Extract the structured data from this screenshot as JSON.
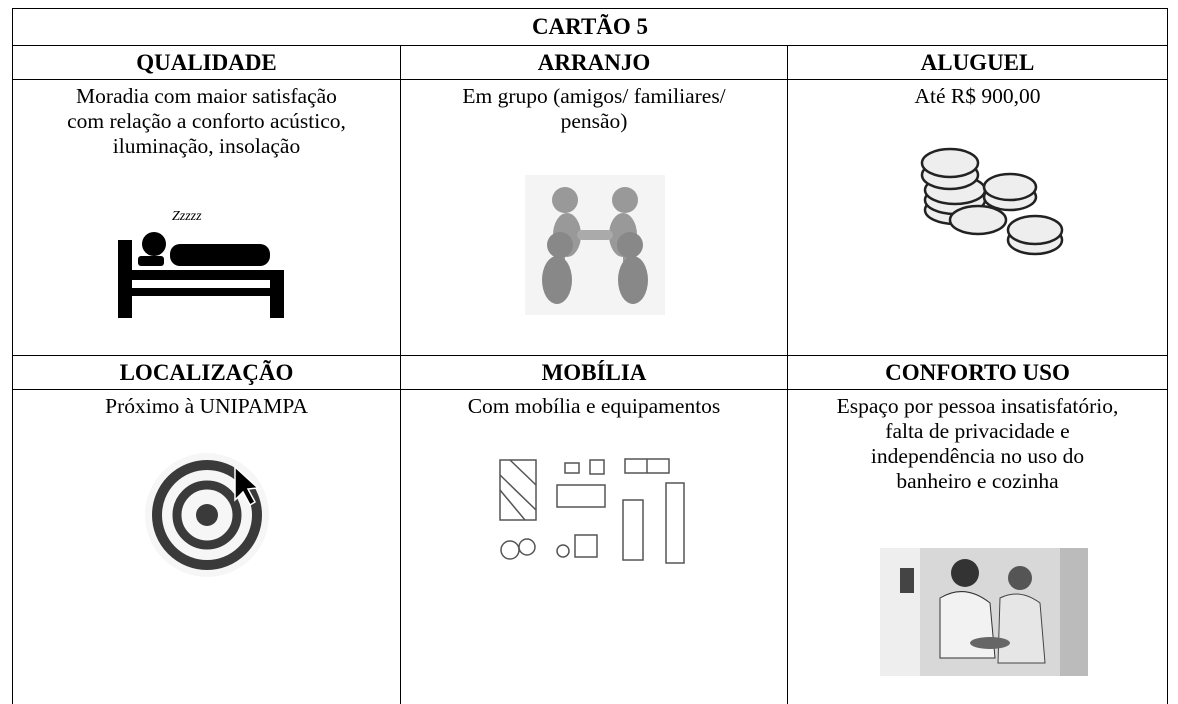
{
  "title": "CARTÃO 5",
  "cells": [
    {
      "heading": "QUALIDADE",
      "lines": [
        "Moradia com maior satisfação",
        "com relação a conforto acústico,",
        "iluminação, insolação"
      ],
      "icon_text": "Zzzzz"
    },
    {
      "heading": "ARRANJO",
      "lines": [
        "Em grupo (amigos/ familiares/",
        "pensão)"
      ]
    },
    {
      "heading": "ALUGUEL",
      "lines": [
        "Até R$ 900,00"
      ]
    },
    {
      "heading": "LOCALIZAÇÃO",
      "lines": [
        "Próximo à UNIPAMPA"
      ]
    },
    {
      "heading": "MOBÍLIA",
      "lines": [
        "Com mobília e equipamentos"
      ]
    },
    {
      "heading": "CONFORTO USO",
      "lines": [
        "Espaço por pessoa insatisfatório,",
        "falta de privacidade e",
        "independência no uso do",
        "banheiro e cozinha"
      ]
    }
  ]
}
